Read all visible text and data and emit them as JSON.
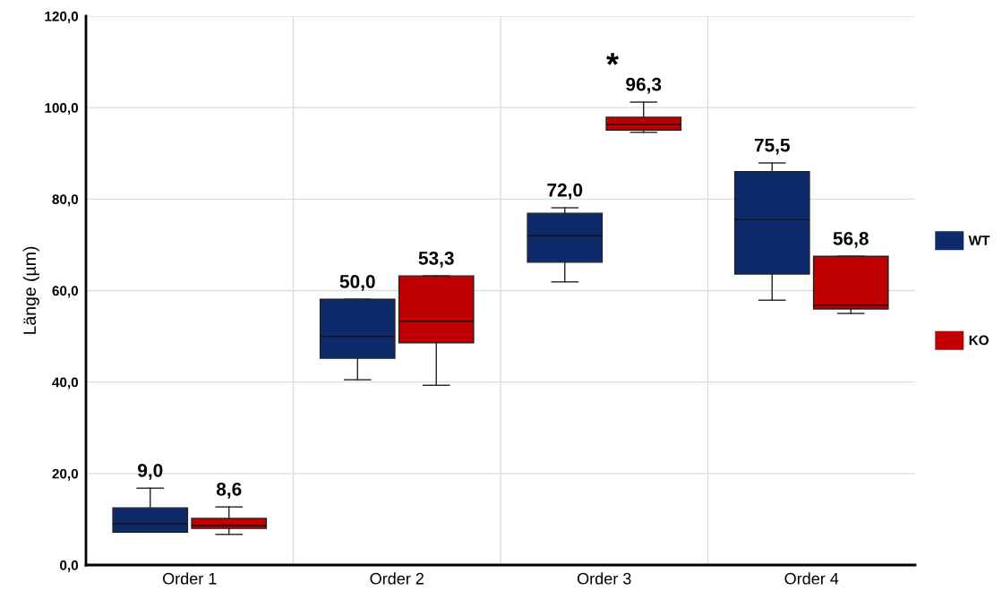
{
  "chart_data": {
    "type": "box",
    "ylabel": "Länge (µm)",
    "categories": [
      "Order 1",
      "Order 2",
      "Order 3",
      "Order 4"
    ],
    "ylim": [
      0,
      120
    ],
    "yticks": [
      {
        "value": 0,
        "label": "0,0"
      },
      {
        "value": 20,
        "label": "20,0"
      },
      {
        "value": 40,
        "label": "40,0"
      },
      {
        "value": 60,
        "label": "60,0"
      },
      {
        "value": 80,
        "label": "80,0"
      },
      {
        "value": 100,
        "label": "100,0"
      },
      {
        "value": 120,
        "label": "120,0"
      }
    ],
    "series": [
      {
        "name": "WT",
        "color": "#0d2a6b",
        "boxes": [
          {
            "low": 7.2,
            "q1": 7.2,
            "median": 9.0,
            "q3": 12.5,
            "high": 16.8
          },
          {
            "low": 40.5,
            "q1": 45.2,
            "median": 50.0,
            "q3": 58.1,
            "high": 58.1
          },
          {
            "low": 61.9,
            "q1": 66.2,
            "median": 72.0,
            "q3": 76.9,
            "high": 78.1
          },
          {
            "low": 57.9,
            "q1": 63.6,
            "median": 75.5,
            "q3": 86.0,
            "high": 87.9
          }
        ],
        "value_labels": [
          "9,0",
          "50,0",
          "72,0",
          "75,5"
        ]
      },
      {
        "name": "KO",
        "color": "#c00000",
        "boxes": [
          {
            "low": 6.7,
            "q1": 8.0,
            "median": 8.6,
            "q3": 10.2,
            "high": 12.7
          },
          {
            "low": 39.3,
            "q1": 48.6,
            "median": 53.3,
            "q3": 63.2,
            "high": 63.2
          },
          {
            "low": 94.6,
            "q1": 95.1,
            "median": 96.3,
            "q3": 97.9,
            "high": 101.2
          },
          {
            "low": 55.0,
            "q1": 56.0,
            "median": 56.8,
            "q3": 67.5,
            "high": 67.5
          }
        ],
        "value_labels": [
          "8,6",
          "53,3",
          "96,3",
          "56,8"
        ]
      }
    ],
    "annotations": [
      "*"
    ],
    "grid": true,
    "legend": "right"
  }
}
